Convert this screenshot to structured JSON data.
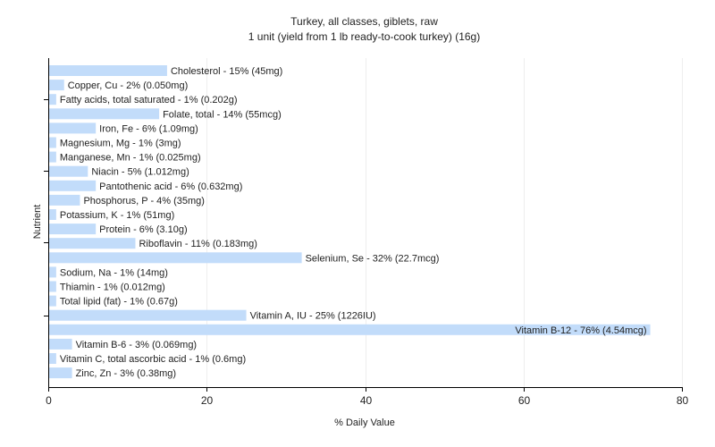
{
  "chart_data": {
    "type": "bar",
    "orientation": "horizontal",
    "title": "Turkey, all classes, giblets, raw",
    "subtitle": "1 unit (yield from 1 lb ready-to-cook turkey) (16g)",
    "xlabel": "% Daily Value",
    "ylabel": "Nutrient",
    "xlim": [
      0,
      80
    ],
    "xticks": [
      0,
      20,
      40,
      60,
      80
    ],
    "grid": true,
    "bar_color": "#c2dcfa",
    "categories": [
      "Cholesterol",
      "Copper, Cu",
      "Fatty acids, total saturated",
      "Folate, total",
      "Iron, Fe",
      "Magnesium, Mg",
      "Manganese, Mn",
      "Niacin",
      "Pantothenic acid",
      "Phosphorus, P",
      "Potassium, K",
      "Protein",
      "Riboflavin",
      "Selenium, Se",
      "Sodium, Na",
      "Thiamin",
      "Total lipid (fat)",
      "Vitamin A, IU",
      "Vitamin B-12",
      "Vitamin B-6",
      "Vitamin C, total ascorbic acid",
      "Zinc, Zn"
    ],
    "values": [
      15,
      2,
      1,
      14,
      6,
      1,
      1,
      5,
      6,
      4,
      1,
      6,
      11,
      32,
      1,
      1,
      1,
      25,
      76,
      3,
      1,
      3
    ],
    "labels": [
      "Cholesterol - 15% (45mg)",
      "Copper, Cu - 2% (0.050mg)",
      "Fatty acids, total saturated - 1% (0.202g)",
      "Folate, total - 14% (55mcg)",
      "Iron, Fe - 6% (1.09mg)",
      "Magnesium, Mg - 1% (3mg)",
      "Manganese, Mn - 1% (0.025mg)",
      "Niacin - 5% (1.012mg)",
      "Pantothenic acid - 6% (0.632mg)",
      "Phosphorus, P - 4% (35mg)",
      "Potassium, K - 1% (51mg)",
      "Protein - 6% (3.10g)",
      "Riboflavin - 11% (0.183mg)",
      "Selenium, Se - 32% (22.7mcg)",
      "Sodium, Na - 1% (14mg)",
      "Thiamin - 1% (0.012mg)",
      "Total lipid (fat) - 1% (0.67g)",
      "Vitamin A, IU - 25% (1226IU)",
      "Vitamin B-12 - 76% (4.54mcg)",
      "Vitamin B-6 - 3% (0.069mg)",
      "Vitamin C, total ascorbic acid - 1% (0.6mg)",
      "Zinc, Zn - 3% (0.38mg)"
    ]
  }
}
